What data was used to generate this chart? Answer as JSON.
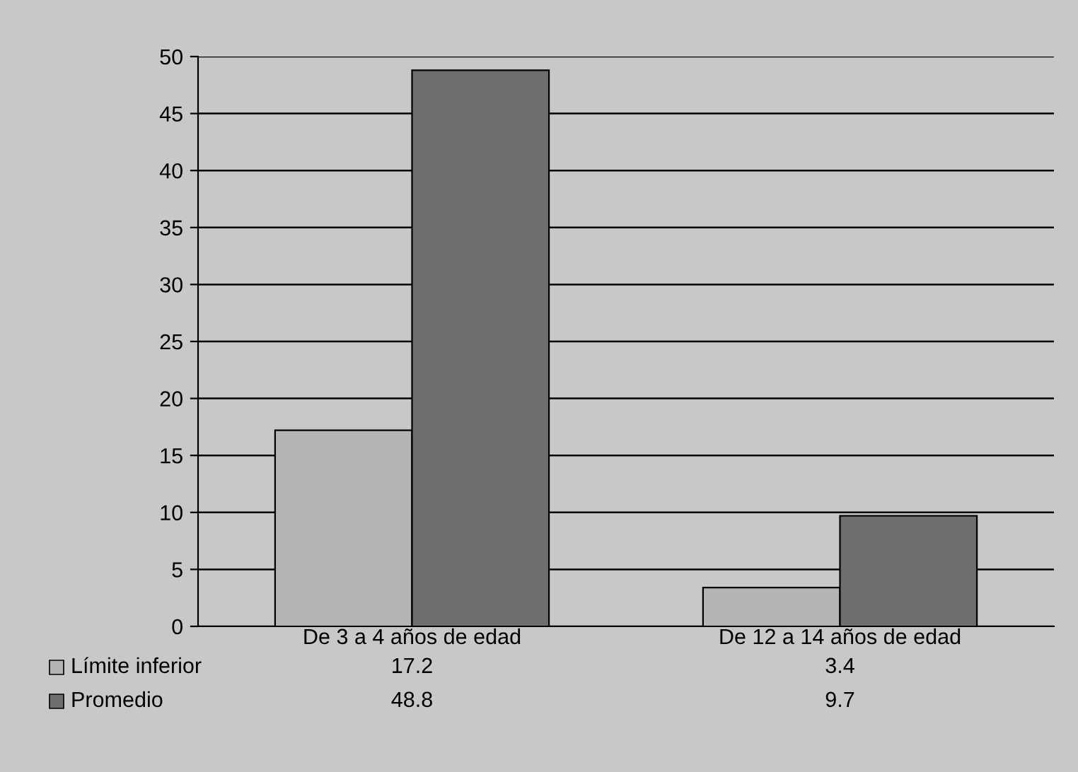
{
  "chart_data": {
    "type": "bar",
    "categories": [
      "De 3 a 4 años de edad",
      "De 12 a 14 años de edad"
    ],
    "series": [
      {
        "name": "Límite inferior",
        "color": "#b4b4b4",
        "values": [
          17.2,
          3.4
        ]
      },
      {
        "name": "Promedio",
        "color": "#6e6e70",
        "values": [
          48.8,
          9.7
        ]
      }
    ],
    "ylim": [
      0,
      50
    ],
    "yticks": [
      0,
      5,
      10,
      15,
      20,
      25,
      30,
      35,
      40,
      45,
      50
    ],
    "grid": "y",
    "legend": "bottom",
    "data_labels": true
  }
}
